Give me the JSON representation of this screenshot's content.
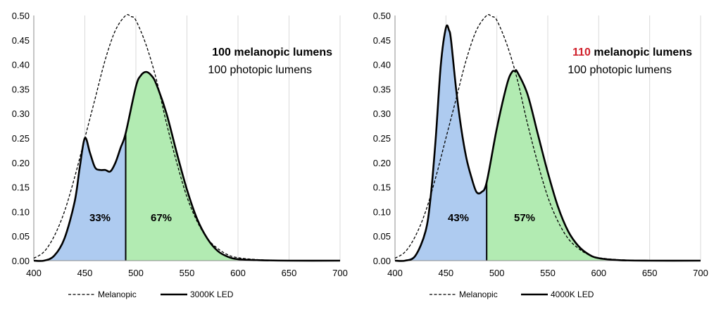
{
  "chart_data": [
    {
      "type": "area",
      "title": "",
      "xlabel": "",
      "ylabel": "",
      "xlim": [
        400,
        700
      ],
      "ylim": [
        0,
        0.5
      ],
      "x_ticks": [
        "400",
        "450",
        "500",
        "550",
        "600",
        "650",
        "700"
      ],
      "y_ticks": [
        "0.00",
        "0.05",
        "0.10",
        "0.15",
        "0.20",
        "0.25",
        "0.30",
        "0.35",
        "0.40",
        "0.45",
        "0.50"
      ],
      "grid": "vertical",
      "split_x": 490,
      "annotation_line1_value": "100",
      "annotation_line1_rest": " melanopic lumens",
      "annotation_line2": "100 photopic lumens",
      "pct_left": "33%",
      "pct_right": "67%",
      "legend": {
        "dashed": "Melanopic",
        "solid": "3000K LED"
      },
      "series": [
        {
          "name": "Melanopic",
          "style": "dashed",
          "x": [
            400,
            410,
            420,
            430,
            440,
            450,
            460,
            470,
            480,
            490,
            495,
            500,
            510,
            520,
            530,
            540,
            550,
            560,
            570,
            580,
            590,
            600,
            620,
            650,
            700
          ],
          "y": [
            0.005,
            0.018,
            0.05,
            0.1,
            0.17,
            0.25,
            0.33,
            0.41,
            0.47,
            0.5,
            0.498,
            0.49,
            0.44,
            0.37,
            0.28,
            0.2,
            0.13,
            0.08,
            0.045,
            0.025,
            0.012,
            0.006,
            0.002,
            0.0,
            0.0
          ]
        },
        {
          "name": "3000K LED",
          "style": "solid",
          "x": [
            400,
            410,
            420,
            430,
            440,
            445,
            450,
            455,
            460,
            465,
            470,
            475,
            480,
            485,
            490,
            500,
            505,
            510,
            515,
            520,
            530,
            540,
            550,
            560,
            570,
            580,
            590,
            600,
            620,
            650,
            700
          ],
          "y": [
            0.0,
            0.0,
            0.01,
            0.045,
            0.12,
            0.19,
            0.25,
            0.22,
            0.19,
            0.185,
            0.185,
            0.182,
            0.2,
            0.23,
            0.26,
            0.355,
            0.378,
            0.385,
            0.378,
            0.36,
            0.3,
            0.22,
            0.145,
            0.085,
            0.045,
            0.02,
            0.008,
            0.003,
            0.001,
            0.0,
            0.0
          ]
        }
      ]
    },
    {
      "type": "area",
      "title": "",
      "xlabel": "",
      "ylabel": "",
      "xlim": [
        400,
        700
      ],
      "ylim": [
        0,
        0.5
      ],
      "x_ticks": [
        "400",
        "450",
        "500",
        "550",
        "600",
        "650",
        "700"
      ],
      "y_ticks": [
        "0.00",
        "0.05",
        "0.10",
        "0.15",
        "0.20",
        "0.25",
        "0.30",
        "0.35",
        "0.40",
        "0.45",
        "0.50"
      ],
      "grid": "vertical",
      "split_x": 490,
      "annotation_line1_value": "110",
      "annotation_line1_rest": " melanopic lumens",
      "annotation_line2": "100 photopic lumens",
      "pct_left": "43%",
      "pct_right": "57%",
      "legend": {
        "dashed": "Melanopic",
        "solid": "4000K LED"
      },
      "series": [
        {
          "name": "Melanopic",
          "style": "dashed",
          "x": [
            400,
            410,
            420,
            430,
            440,
            450,
            460,
            470,
            480,
            490,
            495,
            500,
            510,
            520,
            530,
            540,
            550,
            560,
            570,
            580,
            590,
            600,
            620,
            650,
            700
          ],
          "y": [
            0.005,
            0.018,
            0.05,
            0.1,
            0.17,
            0.25,
            0.33,
            0.41,
            0.47,
            0.5,
            0.498,
            0.49,
            0.44,
            0.37,
            0.28,
            0.2,
            0.13,
            0.08,
            0.045,
            0.025,
            0.012,
            0.006,
            0.002,
            0.0,
            0.0
          ]
        },
        {
          "name": "4000K LED",
          "style": "solid",
          "x": [
            400,
            410,
            420,
            430,
            435,
            440,
            445,
            450,
            453,
            455,
            460,
            465,
            470,
            475,
            480,
            485,
            490,
            500,
            510,
            515,
            518,
            520,
            530,
            540,
            550,
            560,
            570,
            580,
            590,
            600,
            620,
            650,
            700
          ],
          "y": [
            0.0,
            0.0,
            0.01,
            0.06,
            0.13,
            0.25,
            0.4,
            0.475,
            0.47,
            0.45,
            0.35,
            0.27,
            0.21,
            0.17,
            0.14,
            0.14,
            0.16,
            0.27,
            0.36,
            0.385,
            0.386,
            0.385,
            0.34,
            0.26,
            0.18,
            0.11,
            0.06,
            0.03,
            0.013,
            0.005,
            0.001,
            0.0,
            0.0
          ]
        }
      ]
    }
  ],
  "colors": {
    "blue_fill": "#aecbf0",
    "green_fill": "#b2ebb2",
    "highlight": "#d0202b",
    "grid": "#d9d9d9",
    "axis": "#8c8c8c"
  }
}
